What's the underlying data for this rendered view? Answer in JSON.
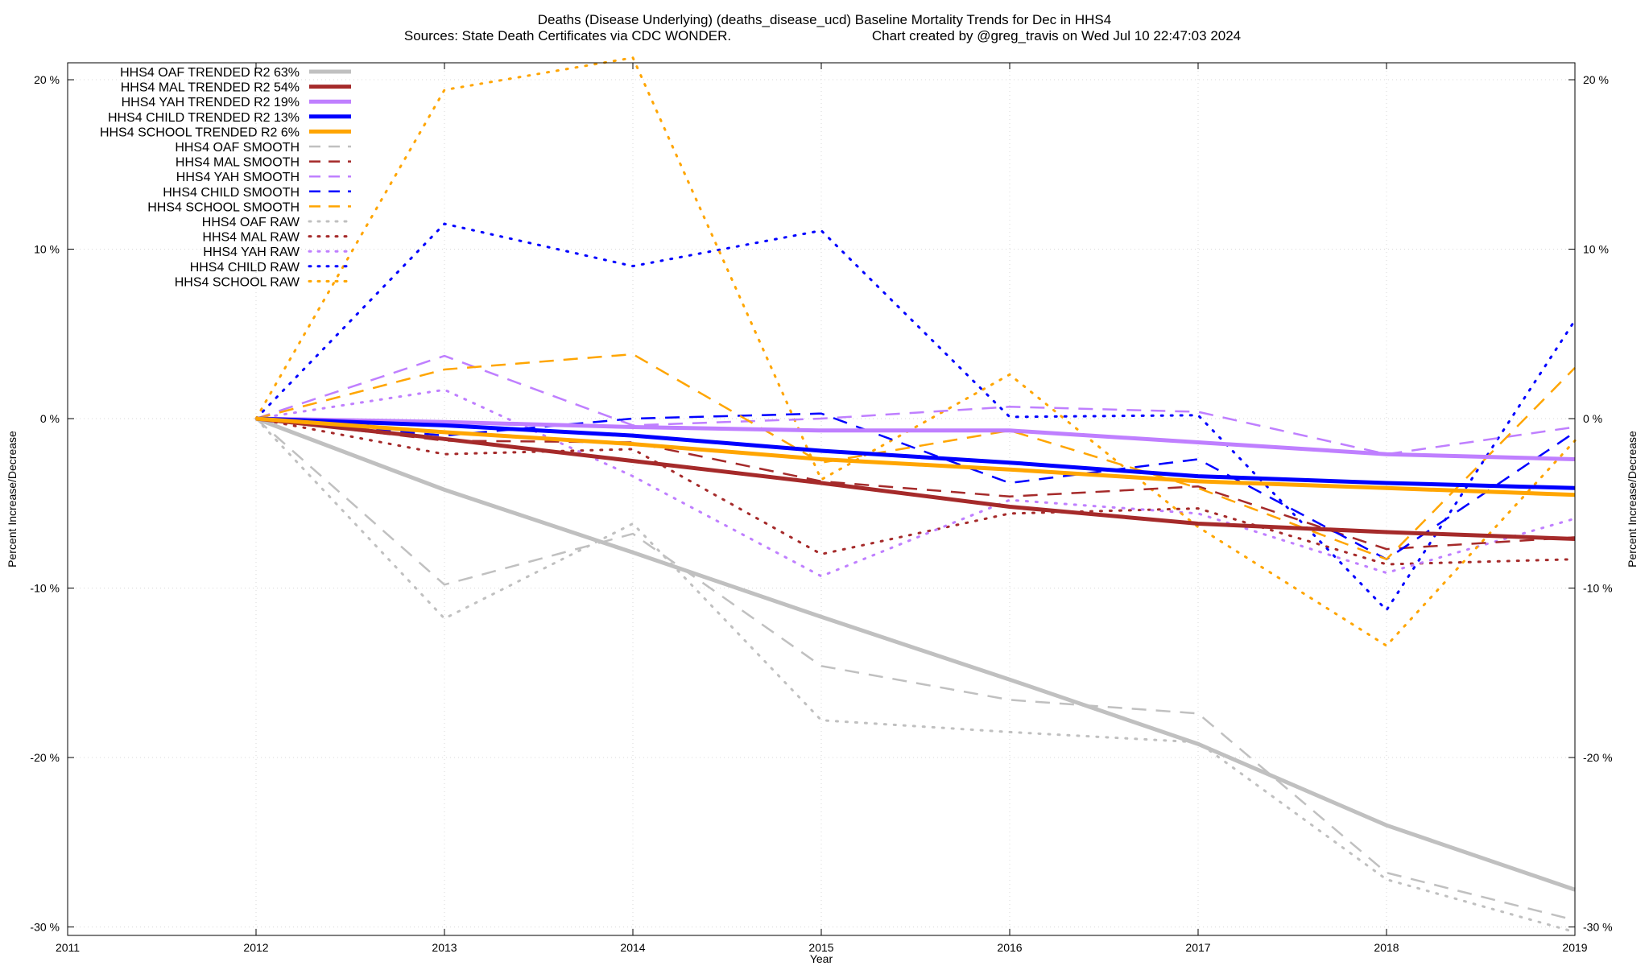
{
  "chart_data": {
    "type": "line",
    "title": "Deaths (Disease Underlying) (deaths_disease_ucd)  Baseline Mortality Trends for Dec in HHS4",
    "subtitle_left": "Sources: State Death Certificates via CDC WONDER.",
    "subtitle_right": "Chart created by @greg_travis on Wed Jul 10 22:47:03 2024",
    "xlabel": "Year",
    "ylabel": "Percent Increase/Decrease",
    "y2label": "Percent Increase/Decrease",
    "xlim": [
      2011,
      2019
    ],
    "ylim": [
      -30.5,
      21
    ],
    "x_ticks": [
      "2011",
      "2012",
      "2013",
      "2014",
      "2015",
      "2016",
      "2017",
      "2018",
      "2019"
    ],
    "y_ticks": [
      {
        "value": 20,
        "label": "20 %"
      },
      {
        "value": 10,
        "label": "10 %"
      },
      {
        "value": 0,
        "label": "0 %"
      },
      {
        "value": -10,
        "label": "-10 %"
      },
      {
        "value": -20,
        "label": "-20 %"
      },
      {
        "value": -30,
        "label": "-30 %"
      }
    ],
    "grid": true,
    "legend_position": "top-left",
    "x": [
      2012,
      2013,
      2014,
      2015,
      2016,
      2017,
      2018,
      2019
    ],
    "series": [
      {
        "name": "HHS4 OAF TRENDED R2",
        "r2": "63%",
        "style": "solid",
        "color": "#c0c0c0",
        "values": [
          0,
          -4.2,
          -7.9,
          -11.7,
          -15.4,
          -19.2,
          -24.0,
          -27.8
        ]
      },
      {
        "name": "HHS4 MAL TRENDED R2",
        "r2": "54%",
        "style": "solid",
        "color": "#a52a2a",
        "values": [
          0,
          -1.2,
          -2.5,
          -3.8,
          -5.2,
          -6.2,
          -6.7,
          -7.1
        ]
      },
      {
        "name": "HHS4 YAH TRENDED R2",
        "r2": "19%",
        "style": "solid",
        "color": "#bf7fff",
        "values": [
          0,
          -0.2,
          -0.5,
          -0.7,
          -0.7,
          -1.4,
          -2.1,
          -2.4
        ]
      },
      {
        "name": "HHS4 CHILD TRENDED R2",
        "r2": "13%",
        "style": "solid",
        "color": "#0000ff",
        "values": [
          0,
          -0.4,
          -1.0,
          -1.9,
          -2.6,
          -3.4,
          -3.8,
          -4.1
        ]
      },
      {
        "name": "HHS4 SCHOOL TRENDED R2",
        "r2": "6%",
        "style": "solid",
        "color": "#ffa500",
        "values": [
          0,
          -0.8,
          -1.5,
          -2.4,
          -3.0,
          -3.7,
          -4.1,
          -4.5
        ]
      },
      {
        "name": "HHS4 OAF SMOOTH",
        "r2": "",
        "style": "dashed",
        "color": "#c0c0c0",
        "values": [
          0,
          -9.8,
          -6.8,
          -14.6,
          -16.6,
          -17.4,
          -26.8,
          -29.6
        ]
      },
      {
        "name": "HHS4 MAL SMOOTH",
        "r2": "",
        "style": "dashed",
        "color": "#a52a2a",
        "values": [
          0,
          -1.3,
          -1.4,
          -3.7,
          -4.6,
          -4.0,
          -7.7,
          -7.0
        ]
      },
      {
        "name": "HHS4 YAH SMOOTH",
        "r2": "",
        "style": "dashed",
        "color": "#bf7fff",
        "values": [
          0,
          3.7,
          -0.4,
          0.0,
          0.7,
          0.4,
          -2.1,
          -0.5
        ]
      },
      {
        "name": "HHS4 CHILD SMOOTH",
        "r2": "",
        "style": "dashed",
        "color": "#0000ff",
        "values": [
          0,
          -1.0,
          0.0,
          0.3,
          -3.8,
          -2.4,
          -8.3,
          -0.8
        ]
      },
      {
        "name": "HHS4 SCHOOL SMOOTH",
        "r2": "",
        "style": "dashed",
        "color": "#ffa500",
        "values": [
          0,
          2.9,
          3.8,
          -2.6,
          -0.7,
          -4.1,
          -8.3,
          3.0
        ]
      },
      {
        "name": "HHS4 OAF RAW",
        "r2": "",
        "style": "dotted",
        "color": "#c0c0c0",
        "values": [
          0,
          -11.8,
          -6.2,
          -17.8,
          -18.5,
          -19.1,
          -27.2,
          -30.3
        ]
      },
      {
        "name": "HHS4 MAL RAW",
        "r2": "",
        "style": "dotted",
        "color": "#a52a2a",
        "values": [
          0,
          -2.1,
          -1.8,
          -8.0,
          -5.6,
          -5.3,
          -8.6,
          -8.3
        ]
      },
      {
        "name": "HHS4 YAH RAW",
        "r2": "",
        "style": "dotted",
        "color": "#bf7fff",
        "values": [
          0,
          1.7,
          -3.4,
          -9.3,
          -4.8,
          -5.6,
          -9.1,
          -5.9
        ]
      },
      {
        "name": "HHS4 CHILD RAW",
        "r2": "",
        "style": "dotted",
        "color": "#0000ff",
        "values": [
          0,
          11.5,
          9.0,
          11.1,
          0.1,
          0.2,
          -11.3,
          5.8
        ]
      },
      {
        "name": "HHS4 SCHOOL RAW",
        "r2": "",
        "style": "dotted",
        "color": "#ffa500",
        "values": [
          0,
          19.4,
          21.3,
          -3.6,
          2.6,
          -6.4,
          -13.4,
          -1.3
        ]
      }
    ]
  }
}
